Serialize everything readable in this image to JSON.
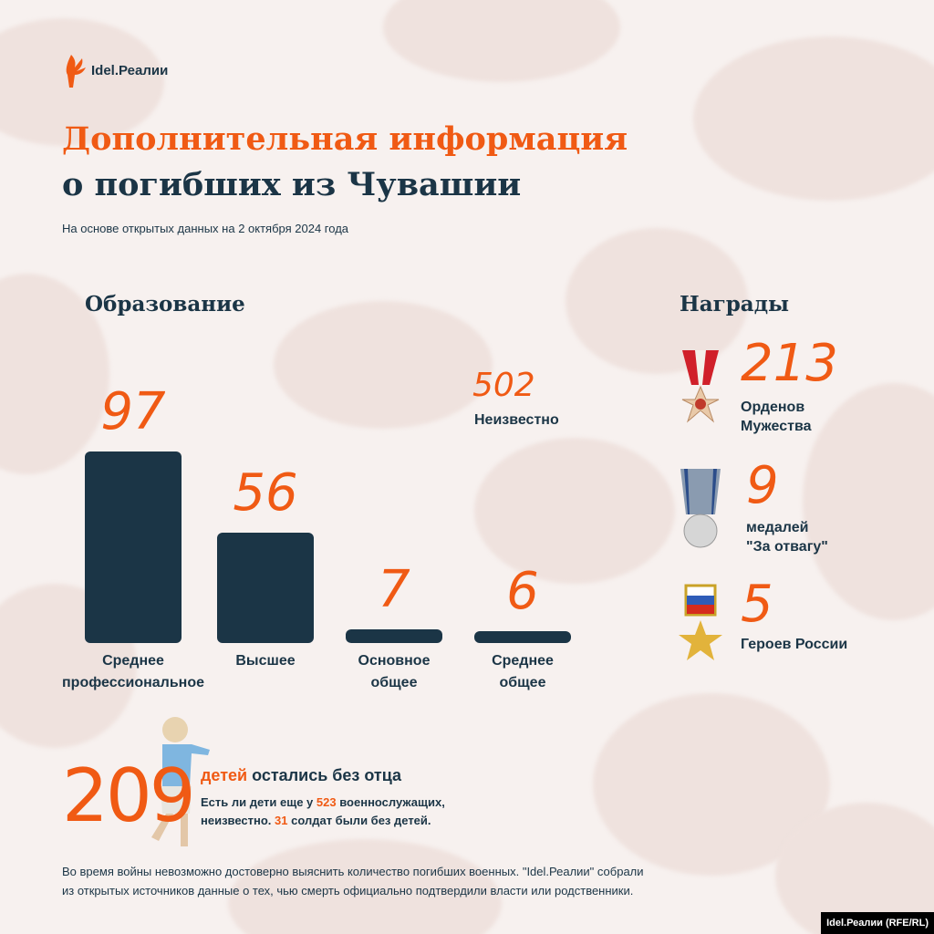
{
  "brand": {
    "logo_text": "Idel.Реалии",
    "credit": "Idel.Реалии (RFE/RL)"
  },
  "header": {
    "title_line1": "Дополнительная информация",
    "title_line2": "о погибших из Чувашии",
    "subtitle": "На основе открытых данных на 2 октября 2024 года"
  },
  "colors": {
    "accent": "#f05a14",
    "navy": "#1b3546",
    "background": "#f7f1ef"
  },
  "chart_data": {
    "type": "bar",
    "title": "Образование",
    "categories": [
      "Среднее профессиональное",
      "Высшее",
      "Основное общее",
      "Среднее общее"
    ],
    "category_lines": [
      [
        "Среднее",
        "профессиональное"
      ],
      [
        "Высшее"
      ],
      [
        "Основное",
        "общее"
      ],
      [
        "Среднее",
        "общее"
      ]
    ],
    "values": [
      97,
      56,
      7,
      6
    ],
    "value_labels": [
      "97",
      "56",
      "7",
      "6"
    ],
    "extra": {
      "value": "502",
      "label": "Неизвестно"
    },
    "grid": false
  },
  "awards": {
    "title": "Награды",
    "items": [
      {
        "value": "213",
        "line1": "Орденов",
        "line2": "Мужества",
        "icon": "order-of-courage-icon"
      },
      {
        "value": "9",
        "line1": "медалей",
        "line2": "\"За отвагу\"",
        "icon": "medal-for-courage-icon"
      },
      {
        "value": "5",
        "line1": "Героев России",
        "line2": "",
        "icon": "hero-star-icon"
      }
    ]
  },
  "children": {
    "value": "209",
    "headline_accent": "детей",
    "headline_rest": " остались без отца",
    "text_a": "Есть ли дети еще у ",
    "num_a": "523",
    "text_b": " военнослужащих,",
    "text_c": "неизвестно. ",
    "num_b": "31",
    "text_d": " солдат были без детей."
  },
  "note": {
    "line1": "Во время войны невозможно достоверно выяснить количество погибших военных. \"Idel.Реалии\" собрали",
    "line2": "из открытых источников данные о тех, чью смерть официально подтвердили власти или родственники."
  }
}
